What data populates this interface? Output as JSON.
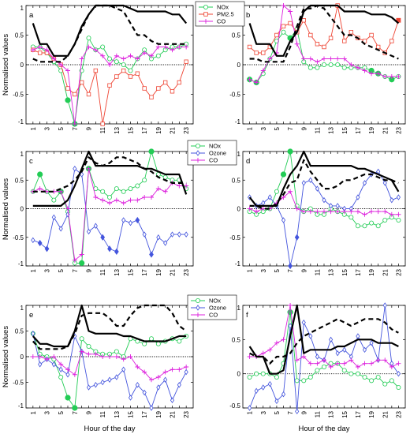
{
  "figure": {
    "ylabel": "Normalised values",
    "xlabel": "Hour of the day",
    "x_ticks": [
      "1",
      "3",
      "5",
      "7",
      "9",
      "11",
      "13",
      "15",
      "17",
      "19",
      "21",
      "23"
    ],
    "legend_row1": [
      "NOx",
      "PM2.5",
      "CO"
    ],
    "legend_rows23": [
      "NOx",
      "Ozone",
      "CO"
    ]
  },
  "colors": {
    "NOx": "#22cc55",
    "PM2.5": "#ee4433",
    "Ozone": "#4455dd",
    "CO": "#dd22dd",
    "solid": "#000000",
    "dashed": "#000000"
  },
  "chart_data": [
    {
      "type": "line",
      "panel": "a",
      "ylim": [
        -1,
        1
      ],
      "xlim": [
        0,
        24
      ],
      "yticks": [
        "1",
        "0.5",
        "0",
        "-0.5",
        "-1"
      ],
      "x": [
        1,
        2,
        3,
        4,
        5,
        6,
        7,
        8,
        9,
        10,
        11,
        12,
        13,
        14,
        15,
        16,
        17,
        18,
        19,
        20,
        21,
        22,
        23
      ],
      "series": [
        {
          "name": "NOx",
          "values": [
            0.3,
            0.3,
            0.2,
            0.05,
            -0.1,
            -0.6,
            -1.0,
            -0.1,
            0.45,
            0.25,
            0.3,
            0.1,
            0.05,
            0.0,
            -0.1,
            0.1,
            0.25,
            0.1,
            0.15,
            0.25,
            0.3,
            0.3,
            0.35
          ]
        },
        {
          "name": "PM2.5",
          "values": [
            0.25,
            0.2,
            0.2,
            0.1,
            0.0,
            -0.4,
            -0.5,
            -0.3,
            -0.5,
            -0.1,
            -1.0,
            -0.35,
            -0.2,
            -0.1,
            -0.2,
            -0.15,
            -0.4,
            -0.55,
            -0.4,
            -0.3,
            -0.45,
            -0.3,
            0.05
          ]
        },
        {
          "name": "CO",
          "values": [
            0.25,
            0.3,
            0.25,
            0.1,
            0.0,
            -0.1,
            -1.0,
            0.1,
            0.3,
            0.25,
            0.15,
            0.0,
            0.15,
            0.1,
            0.15,
            0.1,
            0.2,
            0.15,
            0.3,
            0.3,
            0.25,
            0.3,
            0.3
          ]
        },
        {
          "values": [
            0.7,
            0.35,
            0.35,
            0.15,
            0.15,
            0.15,
            0.35,
            0.65,
            0.85,
            1.0,
            1.0,
            1.0,
            1.0,
            1.0,
            0.95,
            0.9,
            0.9,
            0.9,
            0.9,
            0.9,
            0.85,
            0.85,
            0.7
          ]
        },
        {
          "values": [
            0.1,
            0.05,
            0.05,
            0.05,
            0.05,
            0.15,
            0.35,
            0.6,
            0.85,
            1.0,
            1.0,
            1.0,
            0.95,
            0.9,
            0.7,
            0.5,
            0.5,
            0.4,
            0.35,
            0.35,
            0.35,
            0.35,
            0.35
          ]
        }
      ]
    },
    {
      "type": "line",
      "panel": "b",
      "ylim": [
        -1,
        1
      ],
      "xlim": [
        0,
        24
      ],
      "yticks": [
        "1",
        "0.5",
        "0",
        "-0.5",
        "-1"
      ],
      "x": [
        1,
        2,
        3,
        4,
        5,
        6,
        7,
        8,
        9,
        10,
        11,
        12,
        13,
        14,
        15,
        16,
        17,
        18,
        19,
        20,
        21,
        22,
        23
      ],
      "series": [
        {
          "name": "NOx",
          "values": [
            -0.25,
            -0.3,
            -0.15,
            0.1,
            0.4,
            0.55,
            0.45,
            0.6,
            0.05,
            -0.05,
            -0.05,
            0.0,
            0.0,
            0.0,
            -0.05,
            -0.05,
            -0.05,
            -0.05,
            -0.1,
            -0.15,
            -0.2,
            -0.25,
            -0.2
          ]
        },
        {
          "name": "PM2.5",
          "values": [
            0.3,
            0.2,
            0.2,
            0.3,
            0.5,
            0.65,
            0.7,
            0.55,
            0.75,
            0.5,
            0.35,
            0.3,
            0.45,
            1.0,
            0.4,
            0.55,
            0.45,
            0.4,
            0.5,
            0.3,
            0.2,
            0.4,
            0.75
          ]
        },
        {
          "name": "CO",
          "values": [
            -0.25,
            -0.3,
            -0.1,
            0.1,
            0.2,
            1.0,
            0.9,
            0.35,
            0.1,
            0.1,
            0.05,
            0.1,
            0.1,
            0.1,
            0.1,
            0.0,
            -0.05,
            -0.1,
            -0.15,
            -0.15,
            -0.2,
            -0.2,
            -0.2
          ]
        },
        {
          "values": [
            0.7,
            0.35,
            0.35,
            0.35,
            0.15,
            0.15,
            0.4,
            0.55,
            0.9,
            1.0,
            1.0,
            1.0,
            1.0,
            1.0,
            0.9,
            0.9,
            0.9,
            0.9,
            0.85,
            0.85,
            0.85,
            0.8,
            0.7
          ]
        },
        {
          "values": [
            0.1,
            0.1,
            0.05,
            0.05,
            0.05,
            0.05,
            0.3,
            0.65,
            0.95,
            0.95,
            1.0,
            0.95,
            0.8,
            0.65,
            0.5,
            0.5,
            0.45,
            0.35,
            0.3,
            0.25,
            0.2,
            0.15,
            0.1
          ]
        }
      ]
    },
    {
      "type": "line",
      "panel": "c",
      "ylim": [
        -1,
        1
      ],
      "xlim": [
        0,
        24
      ],
      "yticks": [
        "1",
        "0.5",
        "0",
        "-0.5",
        "-1"
      ],
      "x": [
        1,
        2,
        3,
        4,
        5,
        6,
        7,
        8,
        9,
        10,
        11,
        12,
        13,
        14,
        15,
        16,
        17,
        18,
        19,
        20,
        21,
        22,
        23
      ],
      "series": [
        {
          "name": "NOx",
          "values": [
            0.3,
            0.6,
            0.3,
            0.15,
            0.3,
            -0.05,
            -0.95,
            -0.95,
            0.7,
            0.35,
            0.3,
            0.2,
            0.35,
            0.3,
            0.35,
            0.4,
            0.5,
            1.0,
            0.6,
            0.55,
            0.5,
            0.5,
            0.35
          ]
        },
        {
          "name": "Ozone",
          "values": [
            -0.55,
            -0.6,
            -0.7,
            -0.15,
            -0.35,
            -0.1,
            0.7,
            0.6,
            -0.4,
            -0.3,
            -0.5,
            -0.7,
            -0.75,
            -0.2,
            -0.25,
            -0.2,
            -0.45,
            -0.8,
            -0.5,
            -0.6,
            -0.45,
            -0.45,
            -0.45
          ]
        },
        {
          "name": "CO",
          "values": [
            0.3,
            0.35,
            0.3,
            0.3,
            0.3,
            0.0,
            -0.9,
            -0.8,
            0.7,
            0.2,
            0.15,
            0.1,
            0.15,
            0.1,
            0.15,
            0.15,
            0.2,
            0.2,
            0.35,
            0.3,
            0.45,
            0.4,
            0.4
          ]
        },
        {
          "values": [
            0.05,
            0.05,
            0.05,
            0.05,
            0.05,
            0.15,
            0.4,
            0.7,
            1.0,
            0.75,
            0.75,
            0.75,
            0.75,
            0.75,
            0.75,
            0.75,
            0.7,
            0.7,
            0.65,
            0.6,
            0.6,
            0.6,
            0.25
          ]
        },
        {
          "values": [
            0.3,
            0.3,
            0.3,
            0.3,
            0.35,
            0.4,
            0.5,
            0.65,
            0.9,
            0.8,
            0.75,
            0.8,
            0.9,
            0.9,
            0.85,
            0.8,
            0.7,
            0.65,
            0.55,
            0.5,
            0.45,
            0.45,
            0.45
          ]
        }
      ]
    },
    {
      "type": "line",
      "panel": "d",
      "ylim": [
        -1,
        1
      ],
      "xlim": [
        0,
        24
      ],
      "yticks": [
        "1",
        "0.5",
        "0",
        "-0.5",
        "-1"
      ],
      "x": [
        1,
        2,
        3,
        4,
        5,
        6,
        7,
        8,
        9,
        10,
        11,
        12,
        13,
        14,
        15,
        16,
        17,
        18,
        19,
        20,
        21,
        22,
        23
      ],
      "series": [
        {
          "name": "NOx",
          "values": [
            -0.05,
            -0.1,
            -0.05,
            0.0,
            0.3,
            0.6,
            1.0,
            0.05,
            -0.05,
            0.0,
            -0.1,
            -0.1,
            0.0,
            -0.05,
            -0.1,
            -0.15,
            -0.3,
            -0.3,
            -0.25,
            -0.3,
            -0.2,
            -0.15,
            -0.2
          ]
        },
        {
          "name": "Ozone",
          "values": [
            0.2,
            0.05,
            0.1,
            0.2,
            0.05,
            -0.2,
            -1.0,
            -0.5,
            0.45,
            0.5,
            0.35,
            0.15,
            0.05,
            0.05,
            0.0,
            0.0,
            0.2,
            0.45,
            0.6,
            0.65,
            0.45,
            0.15,
            0.2
          ]
        },
        {
          "name": "CO",
          "values": [
            0.0,
            -0.05,
            0.0,
            0.0,
            0.1,
            0.2,
            0.3,
            0.0,
            -0.05,
            -0.05,
            -0.05,
            -0.05,
            -0.05,
            -0.05,
            -0.05,
            -0.05,
            -0.05,
            -0.1,
            -0.05,
            -0.05,
            -0.05,
            -0.1,
            -0.1
          ]
        },
        {
          "values": [
            0.2,
            0.05,
            0.05,
            0.05,
            0.05,
            0.35,
            0.6,
            0.75,
            1.0,
            0.75,
            0.75,
            0.75,
            0.75,
            0.75,
            0.75,
            0.75,
            0.7,
            0.7,
            0.65,
            0.6,
            0.55,
            0.5,
            0.3
          ]
        },
        {
          "values": [
            0.05,
            0.05,
            0.0,
            0.0,
            0.1,
            0.25,
            0.45,
            0.5,
            0.85,
            0.65,
            0.5,
            0.35,
            0.35,
            0.4,
            0.5,
            0.5,
            0.55,
            0.6,
            0.6,
            0.55,
            0.5,
            0.5,
            0.45
          ]
        }
      ]
    },
    {
      "type": "line",
      "panel": "e",
      "ylim": [
        -1,
        1
      ],
      "xlim": [
        0,
        24
      ],
      "yticks": [
        "1",
        "0.5",
        "0",
        "-0.5",
        "-1"
      ],
      "x": [
        1,
        2,
        3,
        4,
        5,
        6,
        7,
        8,
        9,
        10,
        11,
        12,
        13,
        14,
        15,
        16,
        17,
        18,
        19,
        20,
        21,
        22,
        23
      ],
      "series": [
        {
          "name": "NOx",
          "values": [
            0.45,
            0.05,
            0.0,
            -0.05,
            -0.4,
            -0.8,
            -1.0,
            0.35,
            0.2,
            0.1,
            0.05,
            0.05,
            0.1,
            0.0,
            0.35,
            0.3,
            0.25,
            0.35,
            0.25,
            0.3,
            0.35,
            0.3,
            0.4
          ]
        },
        {
          "name": "Ozone",
          "values": [
            0.45,
            -0.15,
            -0.05,
            -0.15,
            -0.25,
            -0.35,
            0.4,
            0.1,
            -0.6,
            -0.55,
            -0.5,
            -0.45,
            -0.4,
            -0.25,
            -0.8,
            -0.55,
            -0.7,
            -1.0,
            -0.6,
            -0.45,
            -0.85,
            -0.55,
            -0.3
          ]
        },
        {
          "name": "CO",
          "values": [
            0.0,
            0.0,
            -0.05,
            0.0,
            -0.15,
            -0.25,
            -0.35,
            0.1,
            0.05,
            0.05,
            0.0,
            0.0,
            0.0,
            -0.05,
            0.0,
            -0.2,
            -0.3,
            -0.45,
            -0.4,
            -0.3,
            -0.25,
            -0.25,
            -0.2
          ]
        },
        {
          "values": [
            0.4,
            0.25,
            0.25,
            0.2,
            0.2,
            0.2,
            0.5,
            1.0,
            0.5,
            0.45,
            0.45,
            0.45,
            0.45,
            0.4,
            0.4,
            0.35,
            0.3,
            0.3,
            0.3,
            0.3,
            0.35,
            0.4,
            0.4
          ]
        },
        {
          "values": [
            0.3,
            0.15,
            0.15,
            0.15,
            0.15,
            0.2,
            0.45,
            0.8,
            0.85,
            0.85,
            0.85,
            0.75,
            0.6,
            0.6,
            0.8,
            0.95,
            1.0,
            1.0,
            1.0,
            1.0,
            0.85,
            0.6,
            0.5
          ]
        }
      ]
    },
    {
      "type": "line",
      "panel": "f",
      "ylim": [
        -0.5,
        1
      ],
      "xlim": [
        0,
        24
      ],
      "yticks": [
        "1",
        "0.5",
        "0",
        "-0.5"
      ],
      "x": [
        1,
        2,
        3,
        4,
        5,
        6,
        7,
        8,
        9,
        10,
        11,
        12,
        13,
        14,
        15,
        16,
        17,
        18,
        19,
        20,
        21,
        22,
        23
      ],
      "series": [
        {
          "name": "NOx",
          "values": [
            -0.05,
            0.0,
            0.0,
            0.0,
            -0.05,
            0.15,
            0.9,
            -0.1,
            -0.1,
            -0.05,
            0.05,
            0.1,
            0.15,
            0.15,
            0.05,
            0.0,
            0.0,
            -0.05,
            -0.1,
            -0.05,
            -0.15,
            -0.1,
            -0.2
          ]
        },
        {
          "name": "Ozone",
          "values": [
            -0.5,
            -0.25,
            -0.2,
            -0.15,
            -0.4,
            -0.3,
            0.7,
            -0.55,
            0.75,
            0.55,
            0.25,
            0.2,
            0.5,
            0.3,
            0.35,
            0.25,
            0.55,
            0.35,
            0.45,
            0.2,
            1.0,
            0.15,
            0.0
          ]
        },
        {
          "name": "CO",
          "values": [
            0.25,
            0.25,
            0.3,
            0.35,
            0.45,
            0.5,
            1.0,
            0.2,
            0.25,
            0.15,
            0.15,
            0.2,
            0.1,
            0.15,
            0.15,
            0.2,
            0.1,
            0.15,
            0.15,
            0.2,
            0.2,
            0.1,
            0.15
          ]
        },
        {
          "values": [
            0.4,
            0.25,
            0.25,
            0.0,
            0.0,
            0.05,
            0.55,
            1.0,
            0.3,
            0.35,
            0.35,
            0.35,
            0.35,
            0.4,
            0.4,
            0.45,
            0.5,
            0.5,
            0.5,
            0.45,
            0.45,
            0.45,
            0.4
          ]
        },
        {
          "values": [
            0.3,
            0.25,
            0.25,
            0.15,
            0.25,
            0.25,
            0.3,
            0.45,
            0.55,
            0.6,
            0.65,
            0.7,
            0.75,
            0.8,
            0.75,
            0.7,
            0.75,
            0.8,
            0.8,
            0.8,
            0.75,
            0.65,
            0.6
          ]
        }
      ]
    }
  ]
}
